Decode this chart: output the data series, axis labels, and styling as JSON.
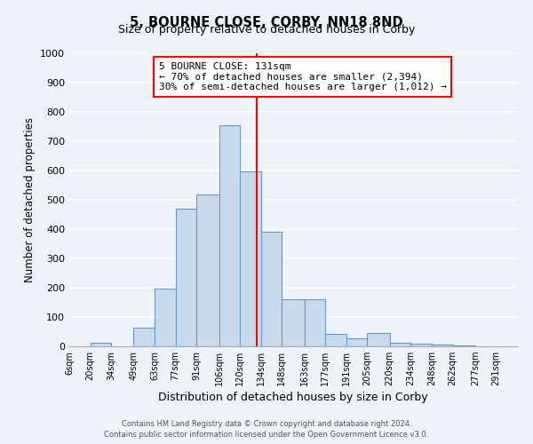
{
  "title": "5, BOURNE CLOSE, CORBY, NN18 8ND",
  "subtitle": "Size of property relative to detached houses in Corby",
  "xlabel": "Distribution of detached houses by size in Corby",
  "ylabel": "Number of detached properties",
  "bar_labels": [
    "6sqm",
    "20sqm",
    "34sqm",
    "49sqm",
    "63sqm",
    "77sqm",
    "91sqm",
    "106sqm",
    "120sqm",
    "134sqm",
    "148sqm",
    "163sqm",
    "177sqm",
    "191sqm",
    "205sqm",
    "220sqm",
    "234sqm",
    "248sqm",
    "262sqm",
    "277sqm",
    "291sqm"
  ],
  "bar_values": [
    0,
    13,
    0,
    65,
    197,
    470,
    517,
    755,
    597,
    390,
    160,
    160,
    42,
    28,
    45,
    13,
    10,
    5,
    3,
    0,
    0
  ],
  "bar_color": "#c8d9ee",
  "bar_edge_color": "#6699cc",
  "vline_x": 131,
  "vline_color": "red",
  "bin_edges": [
    6,
    20,
    34,
    49,
    63,
    77,
    91,
    106,
    120,
    134,
    148,
    163,
    177,
    191,
    205,
    220,
    234,
    248,
    262,
    277,
    291,
    305
  ],
  "annotation_text": "5 BOURNE CLOSE: 131sqm\n← 70% of detached houses are smaller (2,394)\n30% of semi-detached houses are larger (1,012) →",
  "annotation_box_color": "white",
  "annotation_border_color": "red",
  "ylim": [
    0,
    1000
  ],
  "yticks": [
    0,
    100,
    200,
    300,
    400,
    500,
    600,
    700,
    800,
    900,
    1000
  ],
  "footer1": "Contains HM Land Registry data © Crown copyright and database right 2024.",
  "footer2": "Contains public sector information licensed under the Open Government Licence v3.0.",
  "bg_color": "#eef2f9",
  "grid_color": "white"
}
